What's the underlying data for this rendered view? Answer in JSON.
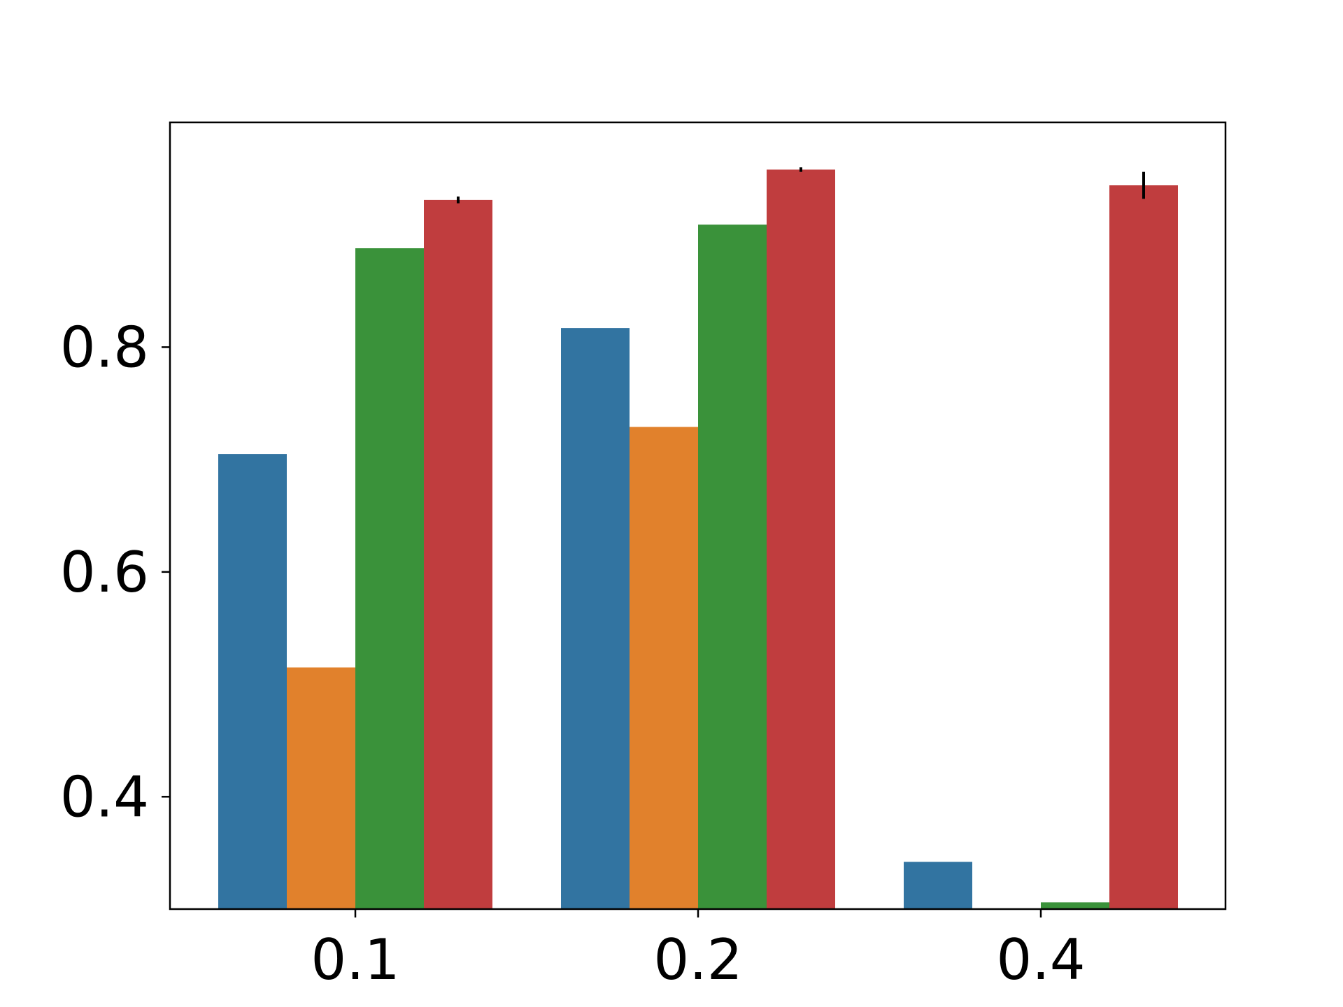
{
  "chart_data": {
    "type": "bar",
    "title": "",
    "xlabel": "",
    "ylabel": "",
    "categories": [
      "0.1",
      "0.2",
      "0.4"
    ],
    "series": [
      {
        "color": "#3274a1",
        "values": [
          0.705,
          0.817,
          0.342
        ]
      },
      {
        "color": "#e1812c",
        "values": [
          0.515,
          0.729,
          null
        ]
      },
      {
        "color": "#3a923a",
        "values": [
          0.888,
          0.909,
          0.306
        ]
      },
      {
        "color": "#c03d3e",
        "values": [
          0.931,
          0.958,
          0.944
        ]
      }
    ],
    "error_bars": {
      "series_index": 3,
      "values": [
        0.003,
        0.002,
        0.012
      ]
    },
    "yticks": [
      0.4,
      0.6,
      0.8
    ],
    "ytick_labels": [
      "0.4",
      "0.6",
      "0.8"
    ],
    "ylim": [
      0.3,
      1.0
    ],
    "grid": false,
    "legend": false
  }
}
